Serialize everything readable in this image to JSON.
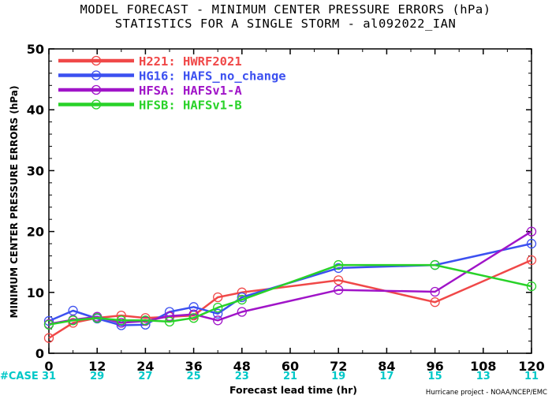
{
  "chart_data": {
    "type": "line",
    "title_line1": "MODEL FORECAST - MINIMUM CENTER PRESSURE ERRORS (hPa)",
    "title_line2": "STATISTICS FOR A SINGLE STORM - al092022_IAN",
    "ylabel": "MINIMUM CENTER PRESSURE ERRORS (hPa)",
    "xlabel": "Forecast lead time (hr)",
    "credit": "Hurricane project - NOAA/NCEP/EMC",
    "xlim": [
      0,
      120
    ],
    "ylim": [
      0,
      50
    ],
    "x_ticks": [
      0,
      12,
      24,
      36,
      48,
      60,
      72,
      84,
      96,
      108,
      120
    ],
    "y_ticks": [
      0,
      10,
      20,
      30,
      40,
      50
    ],
    "x_tick_labels": [
      "0",
      "12",
      "24",
      "36",
      "48",
      "60",
      "72",
      "84",
      "96",
      "108",
      "120"
    ],
    "y_tick_labels": [
      "0",
      "10",
      "20",
      "30",
      "40",
      "50"
    ],
    "case_label": "#CASE",
    "case_color": "#00c8c8",
    "case_x": [
      0,
      12,
      24,
      36,
      48,
      60,
      72,
      84,
      96,
      108,
      120
    ],
    "case_counts": [
      "31",
      "29",
      "27",
      "25",
      "23",
      "21",
      "19",
      "17",
      "15",
      "13",
      "11"
    ],
    "series": [
      {
        "id": "H221",
        "legend": "H221: HWRF2021",
        "color": "#f04848",
        "x": [
          0,
          6,
          12,
          18,
          24,
          30,
          36,
          42,
          48,
          72,
          96,
          120
        ],
        "y": [
          2.5,
          5.0,
          5.8,
          6.2,
          5.8,
          6.0,
          6.2,
          9.2,
          10.0,
          12.0,
          8.4,
          15.3
        ]
      },
      {
        "id": "HG16",
        "legend": "HG16: HAFS_no_change",
        "color": "#3c50f0",
        "x": [
          0,
          6,
          12,
          18,
          24,
          30,
          36,
          42,
          48,
          72,
          96,
          120
        ],
        "y": [
          5.3,
          7.0,
          5.7,
          4.6,
          4.7,
          6.8,
          7.6,
          6.5,
          9.2,
          14.0,
          14.5,
          18.0
        ]
      },
      {
        "id": "HFSA",
        "legend": "HFSA: HAFSv1-A",
        "color": "#a014c8",
        "x": [
          0,
          6,
          12,
          18,
          24,
          30,
          36,
          42,
          48,
          72,
          96,
          120
        ],
        "y": [
          4.8,
          5.5,
          6.0,
          5.0,
          5.3,
          6.1,
          6.4,
          5.4,
          6.8,
          10.4,
          10.1,
          20.0
        ]
      },
      {
        "id": "HFSB",
        "legend": "HFSB: HAFSv1-B",
        "color": "#28d228",
        "x": [
          0,
          6,
          12,
          18,
          24,
          30,
          36,
          42,
          48,
          72,
          96,
          120
        ],
        "y": [
          4.7,
          5.4,
          5.8,
          5.4,
          5.4,
          5.2,
          5.8,
          7.5,
          8.8,
          14.5,
          14.5,
          11.0
        ]
      }
    ]
  }
}
